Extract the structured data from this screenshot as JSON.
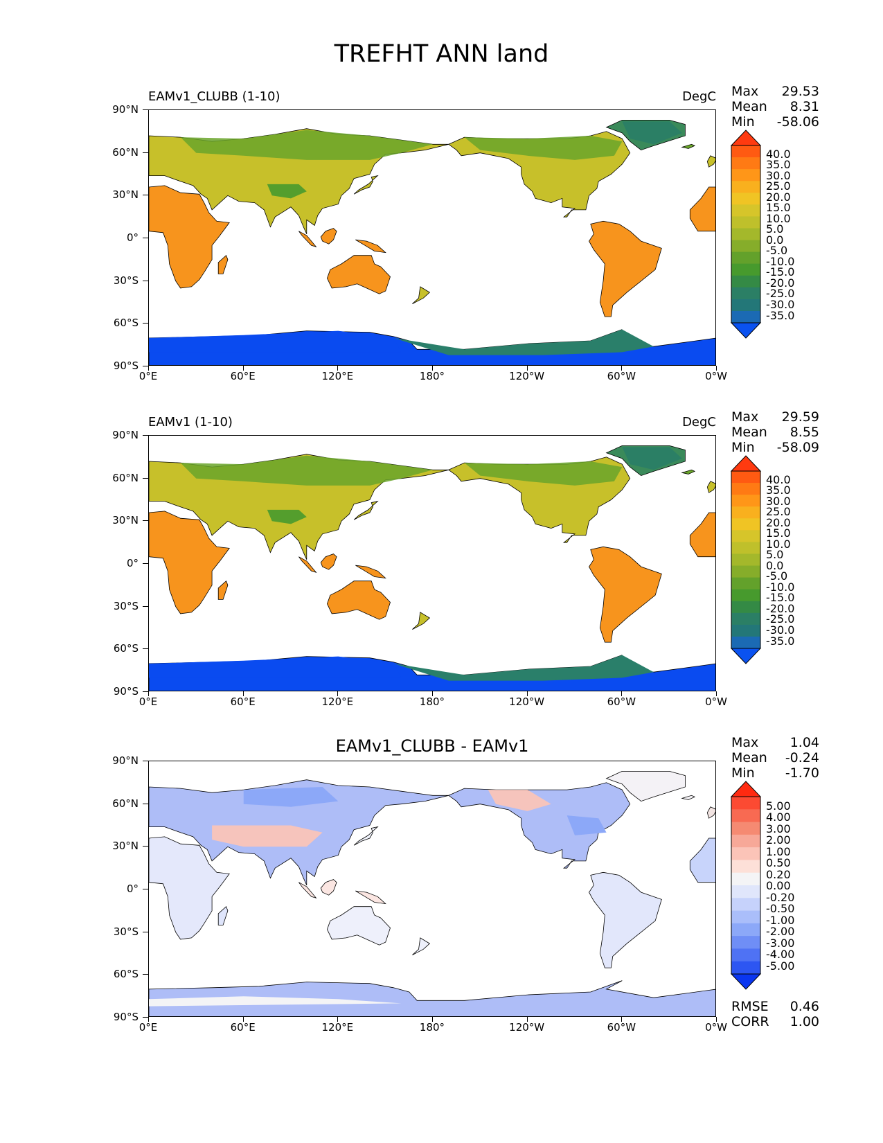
{
  "figure_title": "TREFHT ANN land",
  "units": "DegC",
  "lat_labels": [
    "90°N",
    "60°N",
    "30°N",
    "0°",
    "30°S",
    "60°S",
    "90°S"
  ],
  "lon_labels": [
    "0°E",
    "60°E",
    "120°E",
    "180°",
    "120°W",
    "60°W",
    "0°W"
  ],
  "panels": [
    {
      "id": "test",
      "title_left": "EAMv1_CLUBB (1-10)",
      "title_right": "DegC",
      "title_center": "",
      "stats": {
        "max_label": "Max",
        "max": "29.53",
        "mean_label": "Mean",
        "mean": "8.31",
        "min_label": "Min",
        "min": "-58.06"
      },
      "colorbar": {
        "levels": [
          "40.0",
          "35.0",
          "30.0",
          "25.0",
          "20.0",
          "15.0",
          "10.0",
          "5.0",
          "0.0",
          "-5.0",
          "-10.0",
          "-15.0",
          "-20.0",
          "-25.0",
          "-30.0",
          "-35.0"
        ],
        "colors": [
          "#ff3a10",
          "#ff5a12",
          "#ff7a14",
          "#ff9618",
          "#f9b01e",
          "#f0c424",
          "#d6c52a",
          "#bfc02b",
          "#a4b82b",
          "#86ad2a",
          "#63a12b",
          "#479a2d",
          "#348a45",
          "#2b7f65",
          "#237778",
          "#1b6ab4",
          "#0a52f0"
        ]
      }
    },
    {
      "id": "ref",
      "title_left": "EAMv1 (1-10)",
      "title_right": "DegC",
      "title_center": "",
      "stats": {
        "max_label": "Max",
        "max": "29.59",
        "mean_label": "Mean",
        "mean": "8.55",
        "min_label": "Min",
        "min": "-58.09"
      },
      "colorbar": {
        "levels": [
          "40.0",
          "35.0",
          "30.0",
          "25.0",
          "20.0",
          "15.0",
          "10.0",
          "5.0",
          "0.0",
          "-5.0",
          "-10.0",
          "-15.0",
          "-20.0",
          "-25.0",
          "-30.0",
          "-35.0"
        ],
        "colors": [
          "#ff3a10",
          "#ff5a12",
          "#ff7a14",
          "#ff9618",
          "#f9b01e",
          "#f0c424",
          "#d6c52a",
          "#bfc02b",
          "#a4b82b",
          "#86ad2a",
          "#63a12b",
          "#479a2d",
          "#348a45",
          "#2b7f65",
          "#237778",
          "#1b6ab4",
          "#0a52f0"
        ]
      }
    },
    {
      "id": "diff",
      "title_left": "",
      "title_right": "",
      "title_center": "EAMv1_CLUBB - EAMv1",
      "stats": {
        "max_label": "Max",
        "max": "1.04",
        "mean_label": "Mean",
        "mean": "-0.24",
        "min_label": "Min",
        "min": "-1.70"
      },
      "colorbar": {
        "levels": [
          "5.00",
          "4.00",
          "3.00",
          "2.00",
          "1.00",
          "0.50",
          "0.20",
          "0.00",
          "-0.20",
          "-0.50",
          "-1.00",
          "-2.00",
          "-3.00",
          "-4.00",
          "-5.00"
        ],
        "colors": [
          "#ff2a10",
          "#fc4a32",
          "#f86a52",
          "#f58a72",
          "#f7a898",
          "#fbc4b8",
          "#fde0d8",
          "#f4f4f6",
          "#e0e6fb",
          "#c6d2fb",
          "#aabefa",
          "#8ca8f8",
          "#6f8ef6",
          "#4f72f4",
          "#2d56f2",
          "#0a36f0"
        ]
      },
      "bottom_stats": {
        "rmse_label": "RMSE",
        "rmse": "0.46",
        "corr_label": "CORR",
        "corr": "1.00"
      }
    }
  ],
  "colors": {
    "antarctica_deep": "#0a4bf0",
    "antarctica_coast": "#2a7f6a",
    "greenland": "#3a8a5a",
    "tropics": "#f7941d",
    "midlat": "#c7c02a",
    "boreal": "#6aa52a",
    "diff_blue": "#aebdf7",
    "diff_red": "#f6c4bc"
  }
}
